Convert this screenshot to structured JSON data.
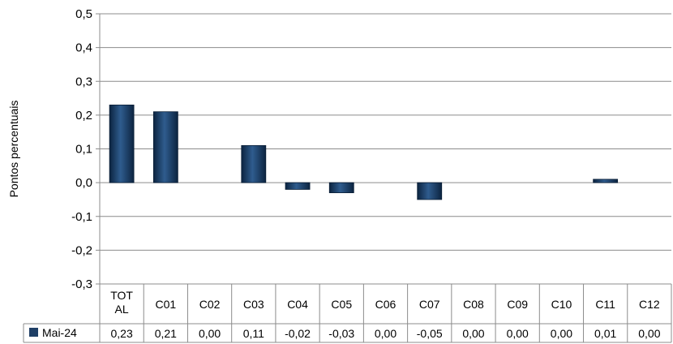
{
  "chart_data": {
    "type": "bar",
    "title": "",
    "xlabel": "",
    "ylabel": "Pontos percentuais",
    "ylim": [
      -0.3,
      0.5
    ],
    "yticks": [
      "0,5",
      "0,4",
      "0,3",
      "0,2",
      "0,1",
      "0,0",
      "-0,1",
      "-0,2",
      "-0,3"
    ],
    "ytick_values": [
      0.5,
      0.4,
      0.3,
      0.2,
      0.1,
      0.0,
      -0.1,
      -0.2,
      -0.3
    ],
    "grid": true,
    "legend_position": "bottom-left (data table)",
    "categories": [
      [
        "TOT",
        "AL"
      ],
      [
        "C01"
      ],
      [
        "C02"
      ],
      [
        "C03"
      ],
      [
        "C04"
      ],
      [
        "C05"
      ],
      [
        "C06"
      ],
      [
        "C07"
      ],
      [
        "C08"
      ],
      [
        "C09"
      ],
      [
        "C10"
      ],
      [
        "C11"
      ],
      [
        "C12"
      ]
    ],
    "series": [
      {
        "name": "Mai-24",
        "values": [
          0.23,
          0.21,
          0.0,
          0.11,
          -0.02,
          -0.03,
          0.0,
          -0.05,
          0.0,
          0.0,
          0.0,
          0.01,
          0.0
        ],
        "labels": [
          "0,23",
          "0,21",
          "0,00",
          "0,11",
          "-0,02",
          "-0,03",
          "0,00",
          "-0,05",
          "0,00",
          "0,00",
          "0,00",
          "0,01",
          "0,00"
        ],
        "color": "#1f3f66"
      }
    ]
  }
}
